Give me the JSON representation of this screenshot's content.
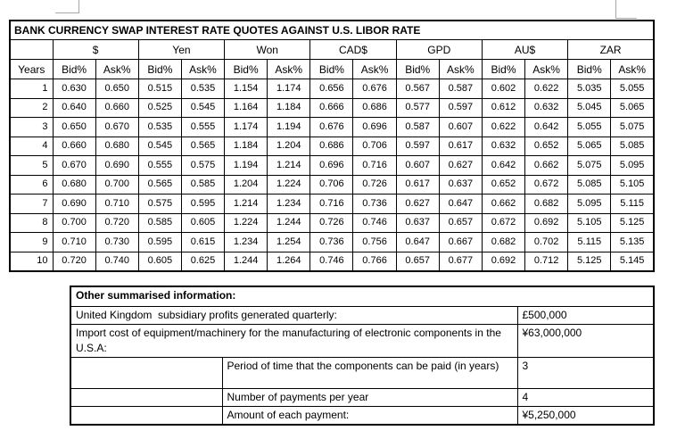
{
  "main_table": {
    "title": "BANK CURRENCY SWAP INTEREST RATE QUOTES AGAINST U.S. LIBOR RATE",
    "years_header": "Years",
    "bid_label": "Bid%",
    "ask_label": "Ask%",
    "currencies": [
      "$",
      "Yen",
      "Won",
      "CAD$",
      "GPD",
      "AU$",
      "ZAR"
    ],
    "rows": [
      {
        "year": "1",
        "values": [
          "0.630",
          "0.650",
          "0.515",
          "0.535",
          "1.154",
          "1.174",
          "0.656",
          "0.676",
          "0.567",
          "0.587",
          "0.602",
          "0.622",
          "5.035",
          "5.055"
        ]
      },
      {
        "year": "2",
        "values": [
          "0.640",
          "0.660",
          "0.525",
          "0.545",
          "1.164",
          "1.184",
          "0.666",
          "0.686",
          "0.577",
          "0.597",
          "0.612",
          "0.632",
          "5.045",
          "5.065"
        ]
      },
      {
        "year": "3",
        "values": [
          "0.650",
          "0.670",
          "0.535",
          "0.555",
          "1.174",
          "1.194",
          "0.676",
          "0.696",
          "0.587",
          "0.607",
          "0.622",
          "0.642",
          "5.055",
          "5.075"
        ]
      },
      {
        "year": "4",
        "values": [
          "0.660",
          "0.680",
          "0.545",
          "0.565",
          "1.184",
          "1.204",
          "0.686",
          "0.706",
          "0.597",
          "0.617",
          "0.632",
          "0.652",
          "5.065",
          "5.085"
        ]
      },
      {
        "year": "5",
        "values": [
          "0.670",
          "0.690",
          "0.555",
          "0.575",
          "1.194",
          "1.214",
          "0.696",
          "0.716",
          "0.607",
          "0.627",
          "0.642",
          "0.662",
          "5.075",
          "5.095"
        ]
      },
      {
        "year": "6",
        "values": [
          "0.680",
          "0.700",
          "0.565",
          "0.585",
          "1.204",
          "1.224",
          "0.706",
          "0.726",
          "0.617",
          "0.637",
          "0.652",
          "0.672",
          "5.085",
          "5.105"
        ]
      },
      {
        "year": "7",
        "values": [
          "0.690",
          "0.710",
          "0.575",
          "0.595",
          "1.214",
          "1.234",
          "0.716",
          "0.736",
          "0.627",
          "0.647",
          "0.662",
          "0.682",
          "5.095",
          "5.115"
        ]
      },
      {
        "year": "8",
        "values": [
          "0.700",
          "0.720",
          "0.585",
          "0.605",
          "1.224",
          "1.244",
          "0.726",
          "0.746",
          "0.637",
          "0.657",
          "0.672",
          "0.692",
          "5.105",
          "5.125"
        ]
      },
      {
        "year": "9",
        "values": [
          "0.710",
          "0.730",
          "0.595",
          "0.615",
          "1.234",
          "1.254",
          "0.736",
          "0.756",
          "0.647",
          "0.667",
          "0.682",
          "0.702",
          "5.115",
          "5.135"
        ]
      },
      {
        "year": "10",
        "values": [
          "0.720",
          "0.740",
          "0.605",
          "0.625",
          "1.244",
          "1.264",
          "0.746",
          "0.766",
          "0.657",
          "0.677",
          "0.692",
          "0.712",
          "5.125",
          "5.145"
        ]
      }
    ]
  },
  "info_table": {
    "title": "Other summarised information:",
    "rows": [
      {
        "label": "United Kingdom  subsidiary profits generated quarterly:",
        "value": "£500,000"
      },
      {
        "label": "Import cost of equipment/machinery for the manufacturing of electronic components in the U.S.A:",
        "value": "¥63,000,000"
      },
      {
        "label": "Period of time that the components can be paid (in years)",
        "value": "3"
      },
      {
        "label": "Number of payments per year",
        "value": "4"
      },
      {
        "label": "Amount of each payment:",
        "value": "¥5,250,000"
      }
    ]
  }
}
